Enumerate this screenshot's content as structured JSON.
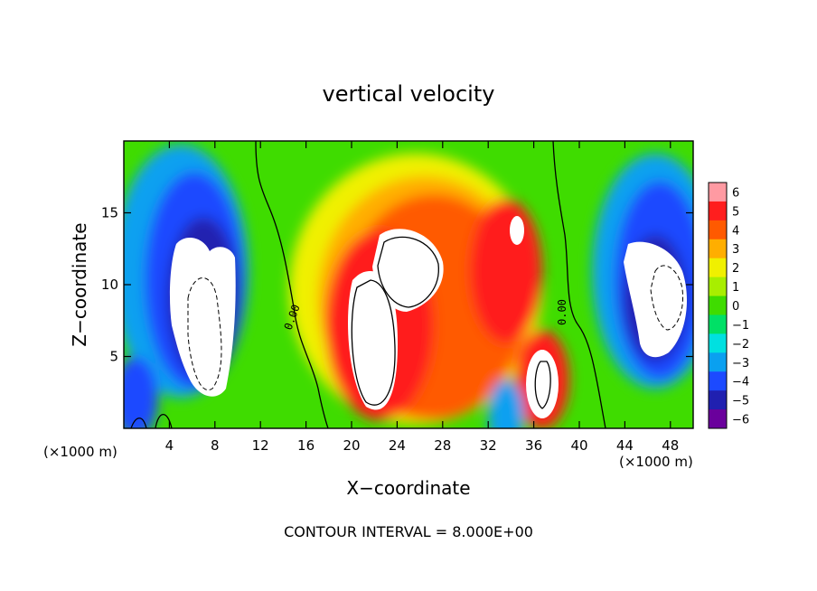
{
  "chart_data": {
    "type": "heatmap",
    "title": "vertical velocity",
    "xlabel": "X−coordinate",
    "ylabel": "Z−coordinate",
    "x_unit_left": "(×1000 m)",
    "x_unit_right": "(×1000 m)",
    "footer": "CONTOUR INTERVAL = 8.000E+00",
    "xlim": [
      0,
      50
    ],
    "ylim": [
      0,
      20
    ],
    "xticks": [
      4,
      8,
      12,
      16,
      20,
      24,
      28,
      32,
      36,
      40,
      44,
      48
    ],
    "yticks": [
      5,
      10,
      15
    ],
    "colorbar": {
      "ticks": [
        6,
        5,
        4,
        3,
        2,
        1,
        0,
        -1,
        -2,
        -3,
        -4,
        -5,
        -6
      ],
      "tick_labels": [
        "6",
        "5",
        "4",
        "3",
        "2",
        "1",
        "0",
        "−1",
        "−2",
        "−3",
        "−4",
        "−5",
        "−6"
      ],
      "colors": [
        "#ff9aa2",
        "#ff1e1e",
        "#ff5a00",
        "#ffae00",
        "#f0f000",
        "#a8ee00",
        "#3fdc00",
        "#00e066",
        "#00e0e0",
        "#0aa0f0",
        "#1c4aff",
        "#2020b0",
        "#6a009c"
      ]
    },
    "contour_labels": [
      "0.00",
      "0.00"
    ],
    "features": [
      {
        "kind": "updraft-core",
        "x": 23,
        "z": 8.5
      },
      {
        "kind": "updraft-core",
        "x": 36.5,
        "z": 3
      },
      {
        "kind": "updraft-core",
        "x": 34.5,
        "z": 13
      },
      {
        "kind": "downdraft-core",
        "x": 7.5,
        "z": 8
      },
      {
        "kind": "downdraft-core",
        "x": 46,
        "z": 8.5
      }
    ]
  }
}
